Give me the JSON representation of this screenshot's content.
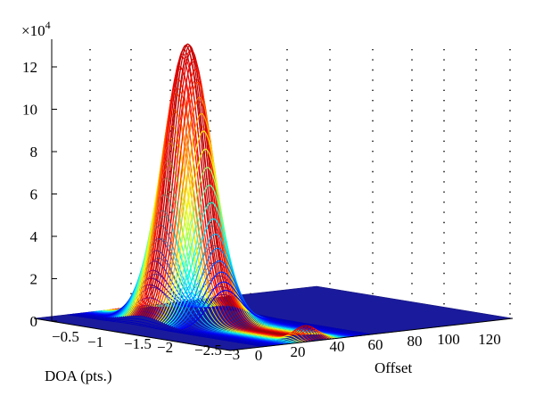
{
  "chart_data": {
    "type": "surface3d",
    "title": "",
    "xlabel": "DOA (pts.)",
    "ylabel": "Offset",
    "zlabel": "",
    "z_scale_label": "×10",
    "z_scale_exponent": "4",
    "x_ticks": [
      "−0.5",
      "−1",
      "−1.5",
      "−2",
      "−2.5",
      "−3"
    ],
    "y_ticks": [
      "0",
      "20",
      "40",
      "60",
      "80",
      "100",
      "120"
    ],
    "z_ticks": [
      "0",
      "2",
      "4",
      "6",
      "8",
      "10",
      "12"
    ],
    "xlim": [
      0,
      -3
    ],
    "ylim": [
      0,
      128
    ],
    "zlim": [
      0,
      13
    ],
    "grid": "dotted",
    "peaks": [
      {
        "doa": -1.0,
        "offset": 40,
        "z": 12.8
      },
      {
        "doa": -2.8,
        "offset": 40,
        "z": 0.6
      }
    ]
  }
}
